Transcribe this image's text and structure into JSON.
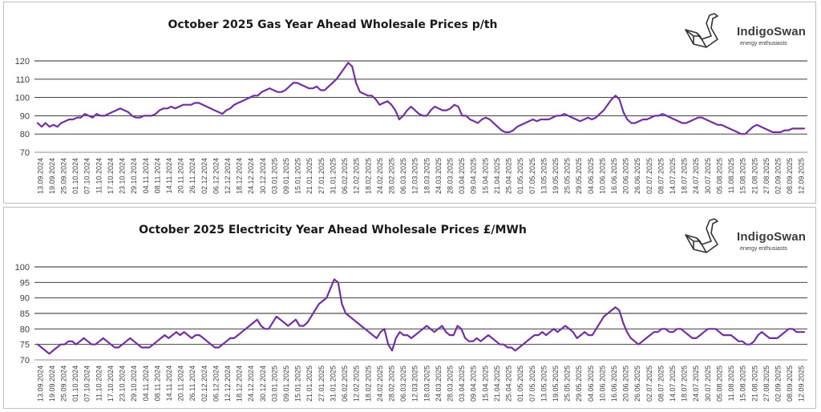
{
  "brand": {
    "name": "IndigoSwan",
    "tagline": "energy enthusiasts",
    "line_color": "#7030A0"
  },
  "chart_data": [
    {
      "type": "line",
      "title": "October 2025 Gas Year Ahead Wholesale Prices p/th",
      "xlabel": "",
      "ylabel": "",
      "ylim": [
        70,
        120
      ],
      "yticks": [
        70,
        80,
        90,
        100,
        110,
        120
      ],
      "grid": true,
      "legend": "none",
      "x_tick_labels": [
        "13.09.2024",
        "19.09.2024",
        "25.09.2024",
        "01.10.2024",
        "07.10.2024",
        "11.10.2024",
        "17.10.2024",
        "23.10.2024",
        "29.10.2024",
        "04.11.2024",
        "08.11.2024",
        "14.11.2024",
        "20.11.2024",
        "26.11.2024",
        "02.12.2024",
        "06.12.2024",
        "12.12.2024",
        "18.12.2024",
        "24.12.2024",
        "30.12.2024",
        "03.01.2025",
        "09.01.2025",
        "15.01.2025",
        "21.01.2025",
        "27.01.2025",
        "31.01.2025",
        "06.02.2025",
        "12.02.2025",
        "18.02.2025",
        "24.02.2025",
        "28.02.2025",
        "06.03.2025",
        "12.03.2025",
        "18.03.2025",
        "24.03.2025",
        "28.03.2025",
        "03.04.2025",
        "09.04.2025",
        "15.04.2025",
        "21.04.2025",
        "25.04.2025",
        "01.05.2025",
        "07.05.2025",
        "13.05.2025",
        "19.05.2025",
        "25.05.2025",
        "29.05.2025",
        "04.06.2025",
        "10.06.2025",
        "16.06.2025",
        "20.06.2025",
        "26.06.2025",
        "02.07.2025",
        "08.07.2025",
        "14.07.2025",
        "18.07.2025",
        "24.07.2025",
        "30.07.2025",
        "05.08.2025",
        "11.08.2025",
        "15.08.2025",
        "21.08.2025",
        "27.08.2025",
        "02.09.2025",
        "08.09.2025",
        "12.09.2025"
      ],
      "series": [
        {
          "color": "#7030A0",
          "values": [
            86,
            84,
            86,
            84,
            85,
            84,
            86,
            87,
            88,
            88,
            89,
            89,
            91,
            90,
            89,
            91,
            90,
            90,
            91,
            92,
            93,
            94,
            93,
            92,
            90,
            89,
            89,
            90,
            90,
            90,
            91,
            93,
            94,
            94,
            95,
            94,
            95,
            96,
            96,
            96,
            97,
            97,
            96,
            95,
            94,
            93,
            92,
            91,
            93,
            94,
            96,
            97,
            98,
            99,
            100,
            101,
            101,
            103,
            104,
            105,
            104,
            103,
            103,
            104,
            106,
            108,
            108,
            107,
            106,
            105,
            105,
            106,
            104,
            104,
            106,
            108,
            110,
            113,
            116,
            119,
            117,
            108,
            103,
            102,
            101,
            101,
            99,
            96,
            97,
            98,
            96,
            93,
            88,
            90,
            93,
            95,
            93,
            91,
            90,
            90,
            93,
            95,
            94,
            93,
            93,
            94,
            96,
            95,
            90,
            90,
            88,
            87,
            86,
            88,
            89,
            88,
            86,
            84,
            82,
            81,
            81,
            82,
            84,
            85,
            86,
            87,
            88,
            87,
            88,
            88,
            88,
            89,
            90,
            90,
            91,
            90,
            89,
            88,
            87,
            88,
            89,
            88,
            89,
            91,
            93,
            96,
            99,
            101,
            99,
            92,
            88,
            86,
            86,
            87,
            88,
            88,
            89,
            90,
            90,
            91,
            90,
            89,
            88,
            87,
            86,
            86,
            87,
            88,
            89,
            89,
            88,
            87,
            86,
            85,
            85,
            84,
            83,
            82,
            81,
            80,
            80,
            82,
            84,
            85,
            84,
            83,
            82,
            81,
            81,
            81,
            82,
            82,
            83,
            83,
            83,
            83
          ]
        }
      ]
    },
    {
      "type": "line",
      "title": "October 2025 Electricity Year Ahead Wholesale Prices £/MWh",
      "xlabel": "",
      "ylabel": "",
      "ylim": [
        70,
        100
      ],
      "yticks": [
        70,
        75,
        80,
        85,
        90,
        95,
        100
      ],
      "grid": true,
      "legend": "none",
      "x_tick_labels": [
        "13.09.2024",
        "19.09.2024",
        "25.09.2024",
        "01.10.2024",
        "07.10.2024",
        "11.10.2024",
        "17.10.2024",
        "23.10.2024",
        "29.10.2024",
        "04.11.2024",
        "08.11.2024",
        "14.11.2024",
        "20.11.2024",
        "26.11.2024",
        "02.12.2024",
        "06.12.2024",
        "12.12.2024",
        "18.12.2024",
        "24.12.2024",
        "30.12.2024",
        "03.01.2025",
        "09.01.2025",
        "15.01.2025",
        "21.01.2025",
        "27.01.2025",
        "31.01.2025",
        "06.02.2025",
        "12.02.2025",
        "18.02.2025",
        "24.02.2025",
        "28.02.2025",
        "06.03.2025",
        "12.03.2025",
        "18.03.2025",
        "24.03.2025",
        "28.03.2025",
        "03.04.2025",
        "09.04.2025",
        "15.04.2025",
        "21.04.2025",
        "25.04.2025",
        "01.05.2025",
        "07.05.2025",
        "13.05.2025",
        "19.05.2025",
        "25.05.2025",
        "29.05.2025",
        "04.06.2025",
        "10.06.2025",
        "16.06.2025",
        "20.06.2025",
        "26.06.2025",
        "02.07.2025",
        "08.07.2025",
        "14.07.2025",
        "18.07.2025",
        "24.07.2025",
        "30.07.2025",
        "05.08.2025",
        "11.08.2025",
        "15.08.2025",
        "21.08.2025",
        "27.08.2025",
        "02.09.2025",
        "08.09.2025",
        "12.09.2025"
      ],
      "series": [
        {
          "color": "#7030A0",
          "values": [
            75,
            74,
            73,
            72,
            73,
            74,
            75,
            75,
            76,
            76,
            75,
            76,
            77,
            76,
            75,
            75,
            76,
            77,
            76,
            75,
            74,
            74,
            75,
            76,
            77,
            76,
            75,
            74,
            74,
            74,
            75,
            76,
            77,
            78,
            77,
            78,
            79,
            78,
            79,
            78,
            77,
            78,
            78,
            77,
            76,
            75,
            74,
            74,
            75,
            76,
            77,
            77,
            78,
            79,
            80,
            81,
            82,
            83,
            81,
            80,
            80,
            82,
            84,
            83,
            82,
            81,
            82,
            83,
            81,
            81,
            82,
            84,
            86,
            88,
            89,
            90,
            93,
            96,
            95,
            88,
            85,
            84,
            83,
            82,
            81,
            80,
            79,
            78,
            77,
            79,
            80,
            75,
            73,
            77,
            79,
            78,
            78,
            77,
            78,
            79,
            80,
            81,
            80,
            79,
            80,
            81,
            79,
            78,
            78,
            81,
            80,
            77,
            76,
            76,
            77,
            76,
            77,
            78,
            77,
            76,
            75,
            75,
            74,
            74,
            73,
            74,
            75,
            76,
            77,
            78,
            78,
            79,
            78,
            79,
            80,
            79,
            80,
            81,
            80,
            79,
            77,
            78,
            79,
            78,
            78,
            80,
            82,
            84,
            85,
            86,
            87,
            86,
            82,
            79,
            77,
            76,
            75,
            76,
            77,
            78,
            79,
            79,
            80,
            80,
            79,
            79,
            80,
            80,
            79,
            78,
            77,
            77,
            78,
            79,
            80,
            80,
            80,
            79,
            78,
            78,
            78,
            77,
            76,
            76,
            75,
            75,
            76,
            78,
            79,
            78,
            77,
            77,
            77,
            78,
            79,
            80,
            80,
            79,
            79,
            79
          ]
        }
      ]
    }
  ]
}
